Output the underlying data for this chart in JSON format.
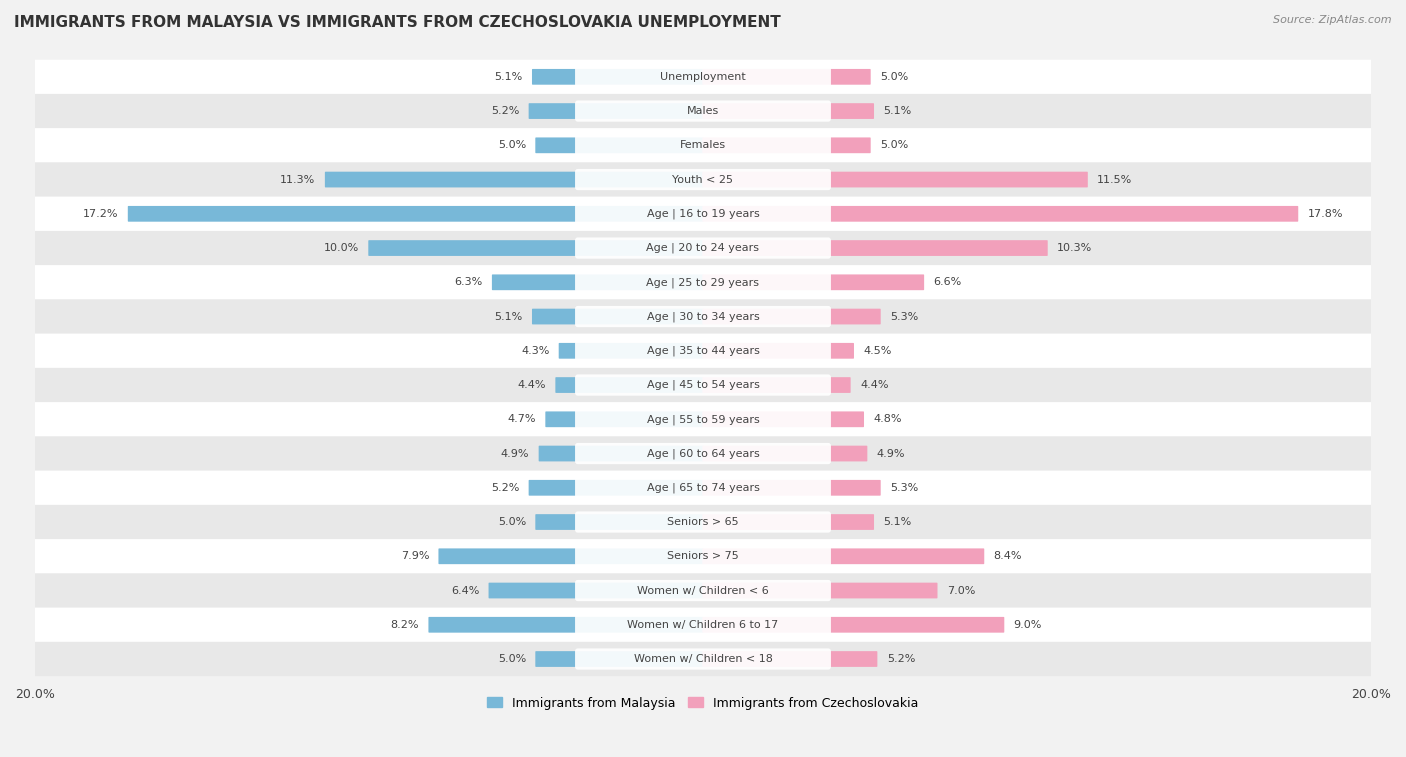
{
  "title": "IMMIGRANTS FROM MALAYSIA VS IMMIGRANTS FROM CZECHOSLOVAKIA UNEMPLOYMENT",
  "source": "Source: ZipAtlas.com",
  "categories": [
    "Unemployment",
    "Males",
    "Females",
    "Youth < 25",
    "Age | 16 to 19 years",
    "Age | 20 to 24 years",
    "Age | 25 to 29 years",
    "Age | 30 to 34 years",
    "Age | 35 to 44 years",
    "Age | 45 to 54 years",
    "Age | 55 to 59 years",
    "Age | 60 to 64 years",
    "Age | 65 to 74 years",
    "Seniors > 65",
    "Seniors > 75",
    "Women w/ Children < 6",
    "Women w/ Children 6 to 17",
    "Women w/ Children < 18"
  ],
  "malaysia_values": [
    5.1,
    5.2,
    5.0,
    11.3,
    17.2,
    10.0,
    6.3,
    5.1,
    4.3,
    4.4,
    4.7,
    4.9,
    5.2,
    5.0,
    7.9,
    6.4,
    8.2,
    5.0
  ],
  "czechoslovakia_values": [
    5.0,
    5.1,
    5.0,
    11.5,
    17.8,
    10.3,
    6.6,
    5.3,
    4.5,
    4.4,
    4.8,
    4.9,
    5.3,
    5.1,
    8.4,
    7.0,
    9.0,
    5.2
  ],
  "malaysia_color": "#78b8d8",
  "czechoslovakia_color": "#f2a0bb",
  "max_value": 20.0,
  "background_color": "#f2f2f2",
  "row_even_color": "#ffffff",
  "row_odd_color": "#e8e8e8",
  "legend_malaysia": "Immigrants from Malaysia",
  "legend_czechoslovakia": "Immigrants from Czechoslovakia",
  "label_fontsize": 8.0,
  "value_fontsize": 8.0,
  "title_fontsize": 11.0
}
